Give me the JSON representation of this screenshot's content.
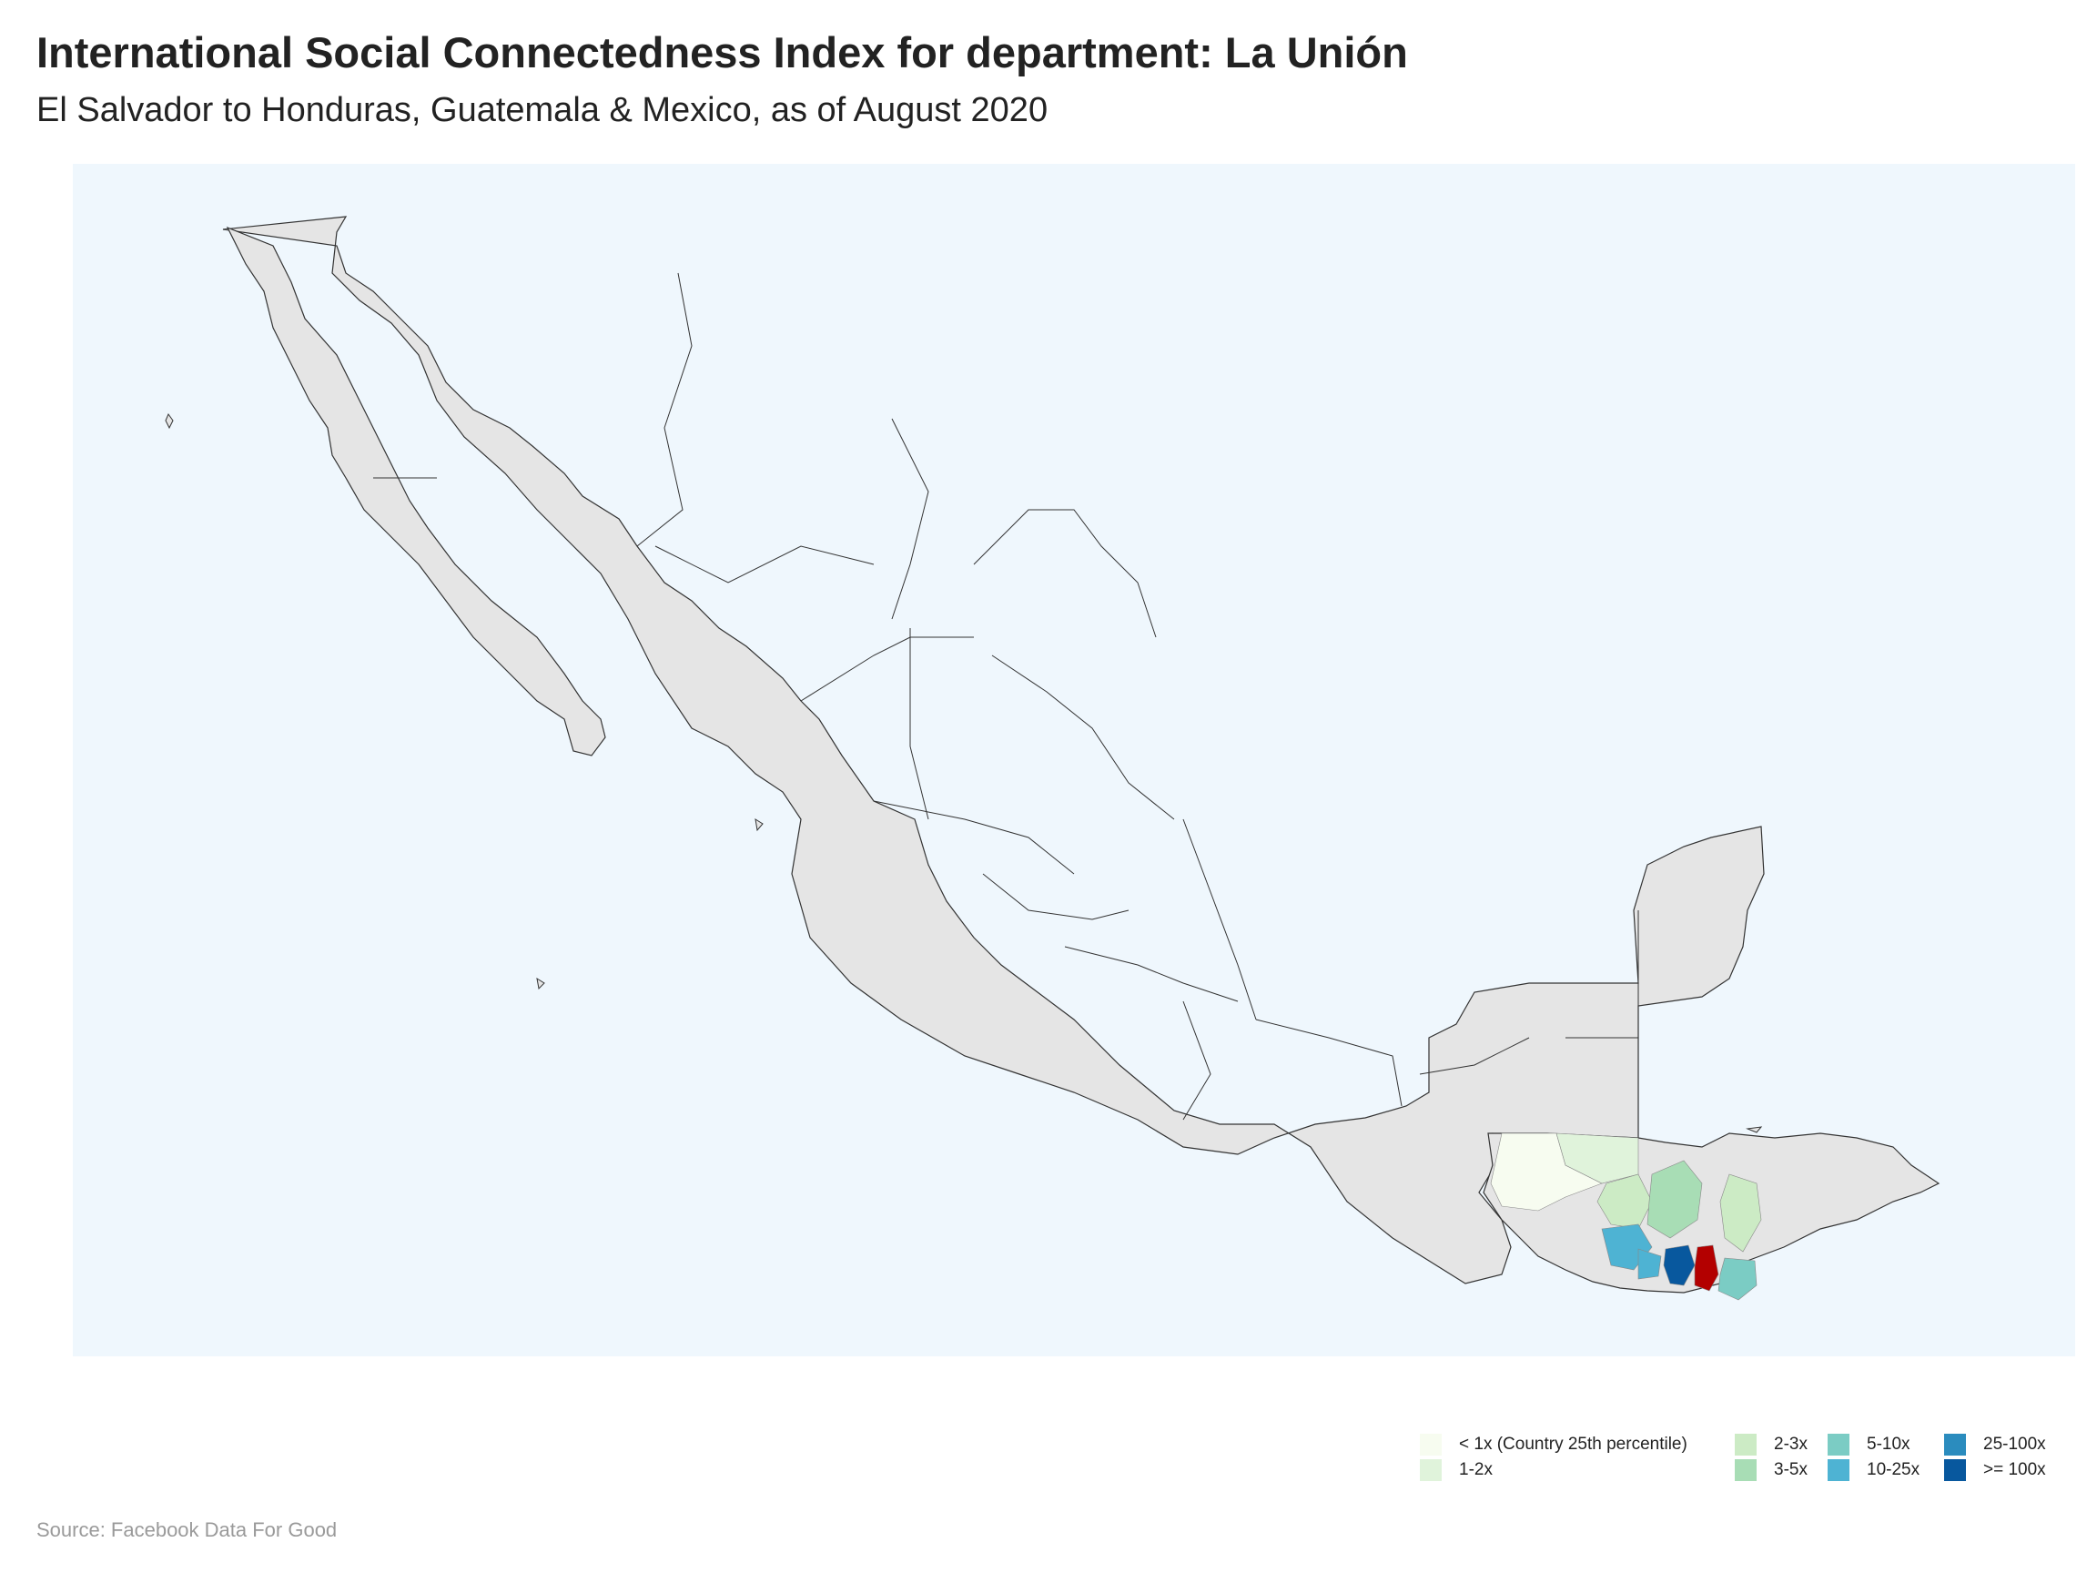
{
  "title": "International Social Connectedness Index for department: La Unión",
  "subtitle": "El Salvador to Honduras, Guatemala & Mexico, as of August 2020",
  "source": "Source: Facebook Data For Good",
  "colors": {
    "ocean": "#eff7fd",
    "land_no_data": "#e5e5e5",
    "border": "#333333",
    "origin_region": "#b30000"
  },
  "legend": {
    "items": [
      {
        "label": "< 1x (Country 25th percentile)",
        "color": "#f7fcf0"
      },
      {
        "label": "1-2x",
        "color": "#e0f3db"
      },
      {
        "label": "2-3x",
        "color": "#ccebc5"
      },
      {
        "label": "3-5x",
        "color": "#a8ddb5"
      },
      {
        "label": "5-10x",
        "color": "#7bccc4"
      },
      {
        "label": "10-25x",
        "color": "#4eb3d3"
      },
      {
        "label": "25-100x",
        "color": "#2b8cbe"
      },
      {
        "label": ">= 100x",
        "color": "#08589e"
      }
    ]
  }
}
